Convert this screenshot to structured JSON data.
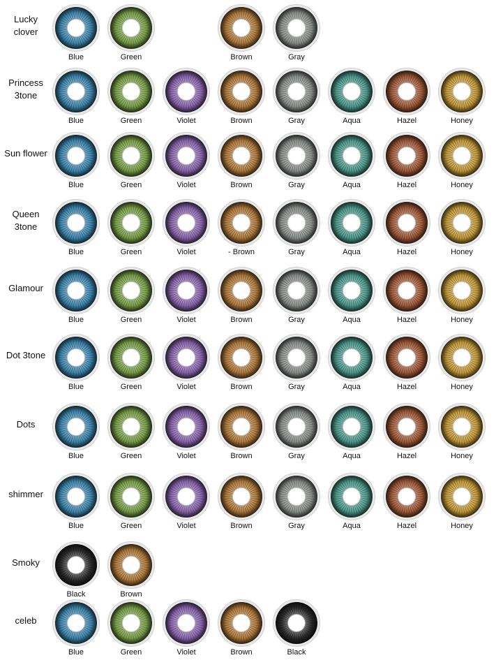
{
  "hex": {
    "Blue": "#3f86ad",
    "Green": "#7aa04a",
    "Violet": "#8a66ad",
    "Brown": "#b07a3c",
    "Gray": "#8b8f8c",
    "Aqua": "#4e9a8c",
    "Hazel": "#a05a3a",
    "Honey": "#c49a3a",
    "Black": "#2b2b2b"
  },
  "rows": [
    {
      "name": "Lucky\nclover",
      "swatches": [
        {
          "label": "Blue",
          "color": "Blue"
        },
        {
          "label": "Green",
          "color": "Green"
        },
        null,
        {
          "label": "Brown",
          "color": "Brown"
        },
        {
          "label": "Gray",
          "color": "Gray"
        }
      ]
    },
    {
      "name": "Princess\n3tone",
      "swatches": [
        {
          "label": "Blue",
          "color": "Blue"
        },
        {
          "label": "Green",
          "color": "Green"
        },
        {
          "label": "Violet",
          "color": "Violet"
        },
        {
          "label": "Brown",
          "color": "Brown"
        },
        {
          "label": "Gray",
          "color": "Gray"
        },
        {
          "label": "Aqua",
          "color": "Aqua"
        },
        {
          "label": "Hazel",
          "color": "Hazel"
        },
        {
          "label": "Honey",
          "color": "Honey"
        }
      ]
    },
    {
      "name": "Sun flower",
      "swatches": [
        {
          "label": "Blue",
          "color": "Blue"
        },
        {
          "label": "Green",
          "color": "Green"
        },
        {
          "label": "Violet",
          "color": "Violet"
        },
        {
          "label": "Brown",
          "color": "Brown"
        },
        {
          "label": "Gray",
          "color": "Gray"
        },
        {
          "label": "Aqua",
          "color": "Aqua"
        },
        {
          "label": "Hazel",
          "color": "Hazel"
        },
        {
          "label": "Honey",
          "color": "Honey"
        }
      ]
    },
    {
      "name": "Queen\n3tone",
      "swatches": [
        {
          "label": "Blue",
          "color": "Blue"
        },
        {
          "label": "Green",
          "color": "Green"
        },
        {
          "label": "Violet",
          "color": "Violet"
        },
        {
          "label": "- Brown",
          "color": "Brown"
        },
        {
          "label": "Gray",
          "color": "Gray"
        },
        {
          "label": "Aqua",
          "color": "Aqua"
        },
        {
          "label": "Hazel",
          "color": "Hazel"
        },
        {
          "label": "Honey",
          "color": "Honey"
        }
      ]
    },
    {
      "name": "Glamour",
      "swatches": [
        {
          "label": "Blue",
          "color": "Blue"
        },
        {
          "label": "Green",
          "color": "Green"
        },
        {
          "label": "Violet",
          "color": "Violet"
        },
        {
          "label": "Brown",
          "color": "Brown"
        },
        {
          "label": "Gray",
          "color": "Gray"
        },
        {
          "label": "Aqua",
          "color": "Aqua"
        },
        {
          "label": "Hazel",
          "color": "Hazel"
        },
        {
          "label": "Honey",
          "color": "Honey"
        }
      ]
    },
    {
      "name": "Dot 3tone",
      "swatches": [
        {
          "label": "Blue",
          "color": "Blue"
        },
        {
          "label": "Green",
          "color": "Green"
        },
        {
          "label": "Violet",
          "color": "Violet"
        },
        {
          "label": "Brown",
          "color": "Brown"
        },
        {
          "label": "Gray",
          "color": "Gray"
        },
        {
          "label": "Aqua",
          "color": "Aqua"
        },
        {
          "label": "Hazel",
          "color": "Hazel"
        },
        {
          "label": "Honey",
          "color": "Honey"
        }
      ]
    },
    {
      "name": "Dots",
      "swatches": [
        {
          "label": "Blue",
          "color": "Blue"
        },
        {
          "label": "Green",
          "color": "Green"
        },
        {
          "label": "Violet",
          "color": "Violet"
        },
        {
          "label": "Brown",
          "color": "Brown"
        },
        {
          "label": "Gray",
          "color": "Gray"
        },
        {
          "label": "Aqua",
          "color": "Aqua"
        },
        {
          "label": "Hazel",
          "color": "Hazel"
        },
        {
          "label": "Honey",
          "color": "Honey"
        }
      ]
    },
    {
      "name": "shimmer",
      "swatches": [
        {
          "label": "Blue",
          "color": "Blue"
        },
        {
          "label": "Green",
          "color": "Green"
        },
        {
          "label": "Violet",
          "color": "Violet"
        },
        {
          "label": "Brown",
          "color": "Brown"
        },
        {
          "label": "Gray",
          "color": "Gray"
        },
        {
          "label": "Aqua",
          "color": "Aqua"
        },
        {
          "label": "Hazel",
          "color": "Hazel"
        },
        {
          "label": "Honey",
          "color": "Honey"
        }
      ]
    },
    {
      "name": "Smoky",
      "swatches": [
        {
          "label": "Black",
          "color": "Black"
        },
        {
          "label": "Brown",
          "color": "Brown"
        }
      ]
    },
    {
      "name": "celeb",
      "swatches": [
        {
          "label": "Blue",
          "color": "Blue"
        },
        {
          "label": "Green",
          "color": "Green"
        },
        {
          "label": "Violet",
          "color": "Violet"
        },
        {
          "label": "Brown",
          "color": "Brown"
        },
        {
          "label": "Black",
          "color": "Black"
        }
      ]
    }
  ]
}
